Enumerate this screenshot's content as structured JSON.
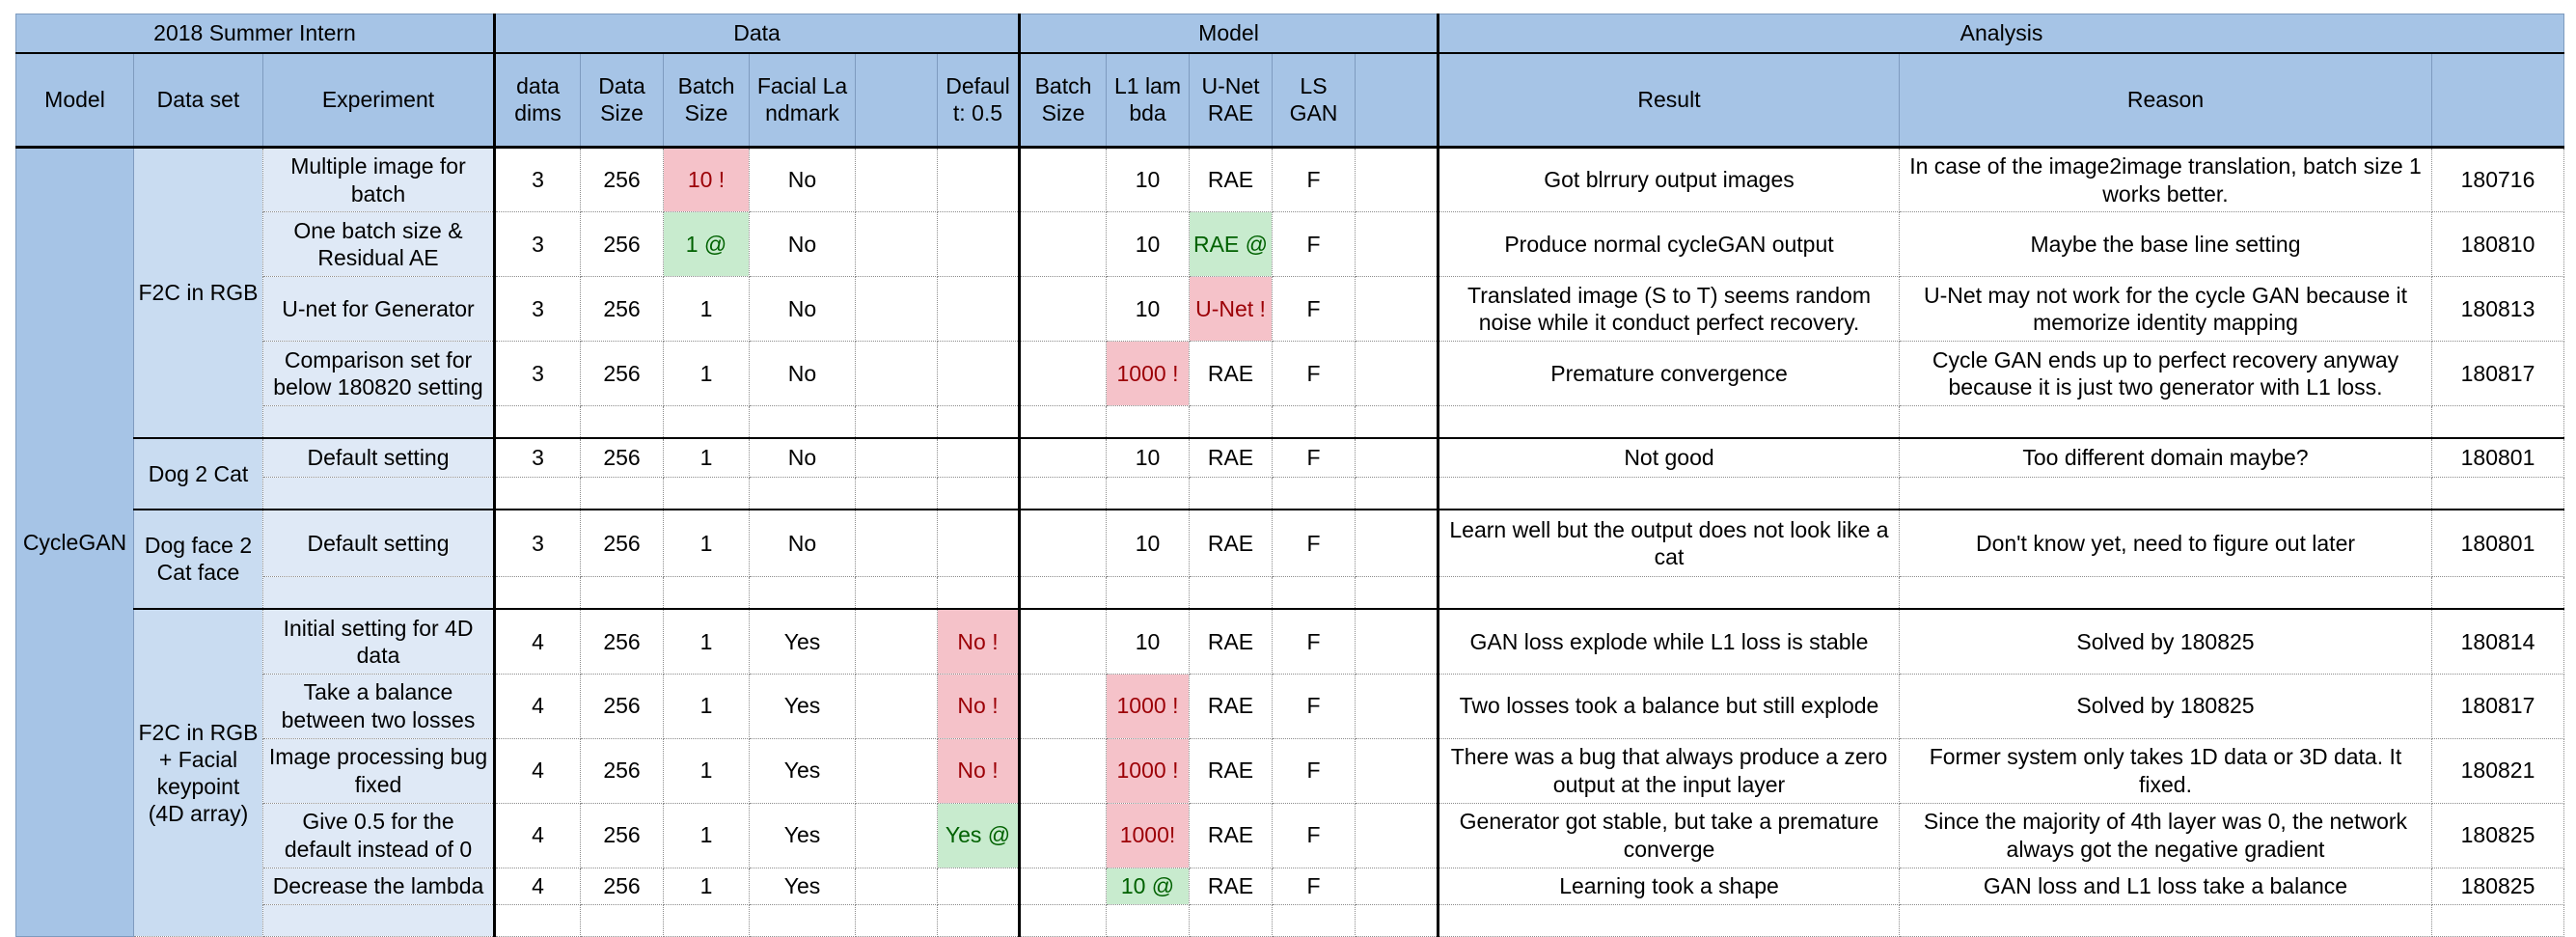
{
  "groups": {
    "intern": "2018 Summer Intern",
    "data": "Data",
    "model": "Model",
    "analysis": "Analysis"
  },
  "headers": {
    "model": "Model",
    "dataset": "Data set",
    "experiment": "Experiment",
    "data_dims": "data dims",
    "data_size": "Data Size",
    "batch_size": "Batch Size",
    "facial_landmark": "Facial Landmark",
    "blank1": "",
    "default": "Default: 0.5",
    "model_batch_size": "Batch Size",
    "l1_lambda": "L1 lambda",
    "unet_rae": "U-Net RAE",
    "ls_gan": "LS GAN",
    "blank2": "",
    "result": "Result",
    "reason": "Reason",
    "blank3": ""
  },
  "model_name": "CycleGAN",
  "datasets": {
    "f2c_rgb": "F2C in RGB",
    "dog2cat": "Dog 2 Cat",
    "dogface2catface": "Dog face 2 Cat face",
    "f2c_keypoint": "F2C in RGB + Facial keypoint (4D array)"
  },
  "rows": [
    {
      "experiment": "Multiple image for batch",
      "dims": "3",
      "size": "256",
      "batch": "10 !",
      "landmark": "No",
      "default": "",
      "lambda": "10",
      "unet": "RAE",
      "lsgan": "F",
      "result": "Got blrrury output images",
      "reason": "In case of the image2image translation, batch size 1 works better.",
      "date": "180716"
    },
    {
      "experiment": "One batch size & Residual AE",
      "dims": "3",
      "size": "256",
      "batch": "1 @",
      "landmark": "No",
      "default": "",
      "lambda": "10",
      "unet": "RAE @",
      "lsgan": "F",
      "result": "Produce normal cycleGAN output",
      "reason": "Maybe the base line setting",
      "date": "180810"
    },
    {
      "experiment": "U-net for Generator",
      "dims": "3",
      "size": "256",
      "batch": "1",
      "landmark": "No",
      "default": "",
      "lambda": "10",
      "unet": "U-Net !",
      "lsgan": "F",
      "result": "Translated image (S to T) seems random noise while it conduct perfect recovery.",
      "reason": "U-Net may not work for the cycle GAN because it memorize identity mapping",
      "date": "180813"
    },
    {
      "experiment": "Comparison set for below 180820 setting",
      "dims": "3",
      "size": "256",
      "batch": "1",
      "landmark": "No",
      "default": "",
      "lambda": "1000 !",
      "unet": "RAE",
      "lsgan": "F",
      "result": "Premature convergence",
      "reason": "Cycle GAN ends up to perfect recovery anyway because it is just two generator with L1 loss.",
      "date": "180817"
    },
    {
      "experiment": "Default setting",
      "dims": "3",
      "size": "256",
      "batch": "1",
      "landmark": "No",
      "default": "",
      "lambda": "10",
      "unet": "RAE",
      "lsgan": "F",
      "result": "Not good",
      "reason": "Too different domain maybe?",
      "date": "180801"
    },
    {
      "experiment": "Default setting",
      "dims": "3",
      "size": "256",
      "batch": "1",
      "landmark": "No",
      "default": "",
      "lambda": "10",
      "unet": "RAE",
      "lsgan": "F",
      "result": "Learn well but the output does not look like a cat",
      "reason": "Don't know yet, need to figure out later",
      "date": "180801"
    },
    {
      "experiment": "Initial setting for 4D data",
      "dims": "4",
      "size": "256",
      "batch": "1",
      "landmark": "Yes",
      "default": "No !",
      "lambda": "10",
      "unet": "RAE",
      "lsgan": "F",
      "result": "GAN loss explode while L1 loss is stable",
      "reason": "Solved by 180825",
      "date": "180814"
    },
    {
      "experiment": "Take a balance between two losses",
      "dims": "4",
      "size": "256",
      "batch": "1",
      "landmark": "Yes",
      "default": "No !",
      "lambda": "1000 !",
      "unet": "RAE",
      "lsgan": "F",
      "result": "Two losses took a balance but still explode",
      "reason": "Solved by 180825",
      "date": "180817"
    },
    {
      "experiment": "Image processing bug fixed",
      "dims": "4",
      "size": "256",
      "batch": "1",
      "landmark": "Yes",
      "default": "No !",
      "lambda": "1000 !",
      "unet": "RAE",
      "lsgan": "F",
      "result": "There was a bug that always produce a zero output at the input layer",
      "reason": "Former system only takes 1D data or 3D data. It fixed.",
      "date": "180821"
    },
    {
      "experiment": "Give 0.5 for the default instead of 0",
      "dims": "4",
      "size": "256",
      "batch": "1",
      "landmark": "Yes",
      "default": "Yes @",
      "lambda": "1000!",
      "unet": "RAE",
      "lsgan": "F",
      "result": "Generator got stable, but take a premature converge",
      "reason": "Since the majority of 4th layer was 0, the network always got the negative gradient",
      "date": "180825"
    },
    {
      "experiment": "Decrease the lambda",
      "dims": "4",
      "size": "256",
      "batch": "1",
      "landmark": "Yes",
      "default": "",
      "lambda": "10 @",
      "unet": "RAE",
      "lsgan": "F",
      "result": "Learning took a shape",
      "reason": "GAN loss and L1 loss take a balance",
      "date": "180825"
    }
  ],
  "colors": {
    "header_blue": "#a6c4e6",
    "dataset_blue": "#c9dcf1",
    "experiment_blue": "#dfe9f6",
    "warn_fill": "#f5c2c9",
    "warn_text": "#9c0006",
    "good_fill": "#c8ebce",
    "good_text": "#006100"
  }
}
